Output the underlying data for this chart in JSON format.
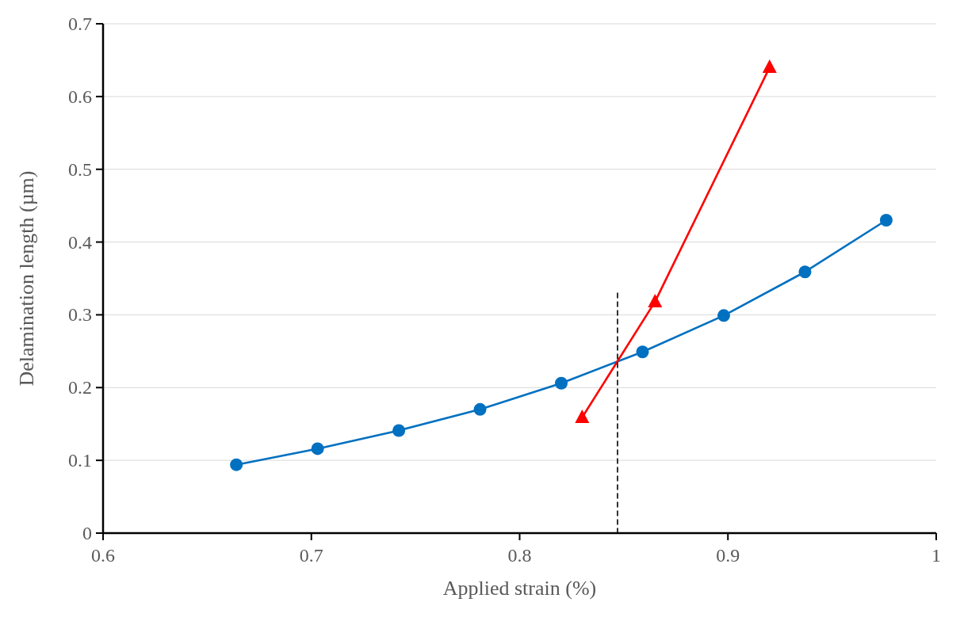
{
  "chart_data": {
    "type": "line",
    "xlabel": "Applied strain (%)",
    "ylabel": "Delamination length (µm)",
    "xlim": [
      0.6,
      1
    ],
    "xticks": [
      0.6,
      0.7,
      0.8,
      0.9,
      1
    ],
    "ylim": [
      0,
      0.7
    ],
    "yticks": [
      0,
      0.1,
      0.2,
      0.3,
      0.4,
      0.5,
      0.6,
      0.7
    ],
    "grid": "y",
    "series": [
      {
        "color": "#0070c0",
        "marker": "circle",
        "x": [
          0.664,
          0.703,
          0.742,
          0.781,
          0.82,
          0.859,
          0.898,
          0.937,
          0.976
        ],
        "values": [
          0.094,
          0.116,
          0.141,
          0.17,
          0.206,
          0.249,
          0.299,
          0.359,
          0.43
        ]
      },
      {
        "color": "#ff0000",
        "marker": "triangle",
        "x": [
          0.83,
          0.865,
          0.92
        ],
        "values": [
          0.159,
          0.318,
          0.64
        ]
      },
      {
        "color": "#000000",
        "marker": "none",
        "line_style": "dashed",
        "x": [
          0.847,
          0.847
        ],
        "values": [
          0,
          0.33
        ]
      }
    ]
  }
}
